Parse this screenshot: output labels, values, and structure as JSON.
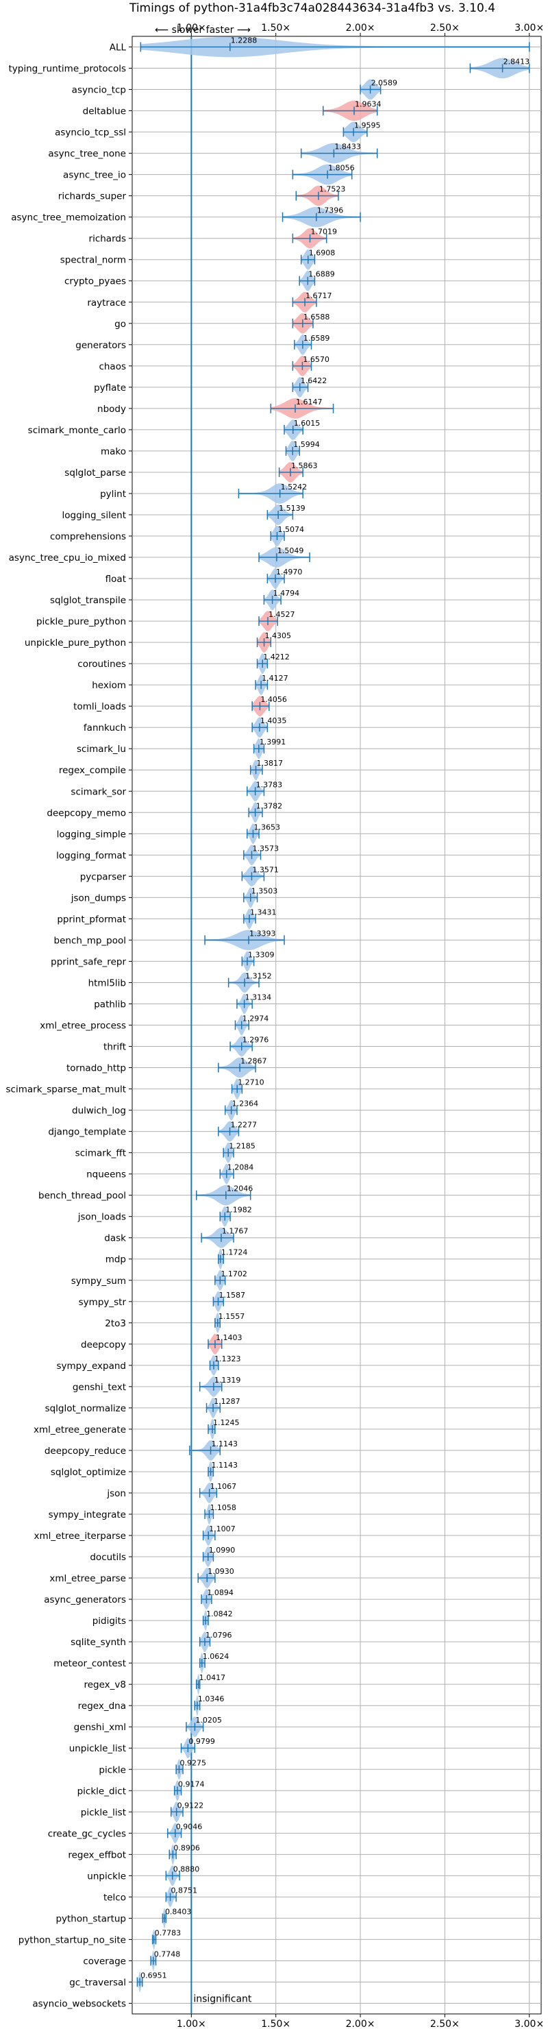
{
  "chart_data": {
    "type": "violin",
    "title": "Timings of python-31a4fb3c74a028443634-31a4fb3 vs. 3.10.4",
    "direction_note": "⟵ slower    faster ⟶",
    "xlim": [
      0.65,
      3.07
    ],
    "x_ticks": [
      1.0,
      1.5,
      2.0,
      2.5,
      3.0
    ],
    "x_tick_labels": [
      "1.00×",
      "1.50×",
      "2.00×",
      "2.50×",
      "3.00×"
    ],
    "grid": true,
    "reference_line": 1.0,
    "colors": {
      "faster": "#a4c8ea",
      "slower": "#f4a9a9",
      "line": "#1f77b4"
    },
    "insignificant_label": "insignificant",
    "benchmarks": [
      {
        "name": "ALL",
        "value": 1.2288,
        "label": "1.2288",
        "low": 0.7,
        "high": 3.0,
        "spread": 0.6,
        "slower": false
      },
      {
        "name": "typing_runtime_protocols",
        "value": 2.8413,
        "label": "2.8413",
        "low": 2.65,
        "high": 3.0,
        "spread": 0.14,
        "slower": false
      },
      {
        "name": "asyncio_tcp",
        "value": 2.0589,
        "label": "2.0589",
        "low": 2.0,
        "high": 2.12,
        "spread": 0.06,
        "slower": false
      },
      {
        "name": "deltablue",
        "value": 1.9634,
        "label": "1.9634",
        "low": 1.78,
        "high": 2.1,
        "spread": 0.12,
        "slower": true
      },
      {
        "name": "asyncio_tcp_ssl",
        "value": 1.9595,
        "label": "1.9595",
        "low": 1.9,
        "high": 2.04,
        "spread": 0.07,
        "slower": false
      },
      {
        "name": "async_tree_none",
        "value": 1.8433,
        "label": "1.8433",
        "low": 1.65,
        "high": 2.1,
        "spread": 0.14,
        "slower": false
      },
      {
        "name": "async_tree_io",
        "value": 1.8056,
        "label": "1.8056",
        "low": 1.6,
        "high": 1.95,
        "spread": 0.12,
        "slower": false
      },
      {
        "name": "richards_super",
        "value": 1.7523,
        "label": "1.7523",
        "low": 1.62,
        "high": 1.87,
        "spread": 0.08,
        "slower": true
      },
      {
        "name": "async_tree_memoization",
        "value": 1.7396,
        "label": "1.7396",
        "low": 1.54,
        "high": 2.0,
        "spread": 0.14,
        "slower": false
      },
      {
        "name": "richards",
        "value": 1.7019,
        "label": "1.7019",
        "low": 1.6,
        "high": 1.8,
        "spread": 0.07,
        "slower": true
      },
      {
        "name": "spectral_norm",
        "value": 1.6908,
        "label": "1.6908",
        "low": 1.65,
        "high": 1.73,
        "spread": 0.04,
        "slower": false
      },
      {
        "name": "crypto_pyaes",
        "value": 1.6889,
        "label": "1.6889",
        "low": 1.64,
        "high": 1.73,
        "spread": 0.04,
        "slower": false
      },
      {
        "name": "raytrace",
        "value": 1.6717,
        "label": "1.6717",
        "low": 1.6,
        "high": 1.74,
        "spread": 0.06,
        "slower": true
      },
      {
        "name": "go",
        "value": 1.6588,
        "label": "1.6588",
        "low": 1.6,
        "high": 1.72,
        "spread": 0.06,
        "slower": true
      },
      {
        "name": "generators",
        "value": 1.6589,
        "label": "1.6589",
        "low": 1.61,
        "high": 1.71,
        "spread": 0.04,
        "slower": false
      },
      {
        "name": "chaos",
        "value": 1.657,
        "label": "1.6570",
        "low": 1.6,
        "high": 1.71,
        "spread": 0.05,
        "slower": true
      },
      {
        "name": "pyflate",
        "value": 1.6422,
        "label": "1.6422",
        "low": 1.6,
        "high": 1.69,
        "spread": 0.04,
        "slower": false
      },
      {
        "name": "nbody",
        "value": 1.6147,
        "label": "1.6147",
        "low": 1.47,
        "high": 1.84,
        "spread": 0.12,
        "slower": true
      },
      {
        "name": "scimark_monte_carlo",
        "value": 1.6015,
        "label": "1.6015",
        "low": 1.55,
        "high": 1.66,
        "spread": 0.05,
        "slower": false
      },
      {
        "name": "mako",
        "value": 1.5994,
        "label": "1.5994",
        "low": 1.56,
        "high": 1.64,
        "spread": 0.04,
        "slower": false
      },
      {
        "name": "sqlglot_parse",
        "value": 1.5863,
        "label": "1.5863",
        "low": 1.52,
        "high": 1.66,
        "spread": 0.06,
        "slower": true
      },
      {
        "name": "pylint",
        "value": 1.5242,
        "label": "1.5242",
        "low": 1.28,
        "high": 1.66,
        "spread": 0.1,
        "slower": false
      },
      {
        "name": "logging_silent",
        "value": 1.5139,
        "label": "1.5139",
        "low": 1.45,
        "high": 1.6,
        "spread": 0.06,
        "slower": false
      },
      {
        "name": "comprehensions",
        "value": 1.5074,
        "label": "1.5074",
        "low": 1.47,
        "high": 1.55,
        "spread": 0.04,
        "slower": false
      },
      {
        "name": "async_tree_cpu_io_mixed",
        "value": 1.5049,
        "label": "1.5049",
        "low": 1.4,
        "high": 1.7,
        "spread": 0.1,
        "slower": false
      },
      {
        "name": "float",
        "value": 1.497,
        "label": "1.4970",
        "low": 1.45,
        "high": 1.55,
        "spread": 0.04,
        "slower": false
      },
      {
        "name": "sqlglot_transpile",
        "value": 1.4794,
        "label": "1.4794",
        "low": 1.43,
        "high": 1.53,
        "spread": 0.04,
        "slower": false
      },
      {
        "name": "pickle_pure_python",
        "value": 1.4527,
        "label": "1.4527",
        "low": 1.4,
        "high": 1.51,
        "spread": 0.05,
        "slower": true
      },
      {
        "name": "unpickle_pure_python",
        "value": 1.4305,
        "label": "1.4305",
        "low": 1.39,
        "high": 1.47,
        "spread": 0.04,
        "slower": true
      },
      {
        "name": "coroutines",
        "value": 1.4212,
        "label": "1.4212",
        "low": 1.39,
        "high": 1.45,
        "spread": 0.03,
        "slower": false
      },
      {
        "name": "hexiom",
        "value": 1.4127,
        "label": "1.4127",
        "low": 1.38,
        "high": 1.45,
        "spread": 0.03,
        "slower": false
      },
      {
        "name": "tomli_loads",
        "value": 1.4056,
        "label": "1.4056",
        "low": 1.36,
        "high": 1.46,
        "spread": 0.05,
        "slower": true
      },
      {
        "name": "fannkuch",
        "value": 1.4035,
        "label": "1.4035",
        "low": 1.36,
        "high": 1.45,
        "spread": 0.04,
        "slower": false
      },
      {
        "name": "scimark_lu",
        "value": 1.3991,
        "label": "1.3991",
        "low": 1.37,
        "high": 1.43,
        "spread": 0.03,
        "slower": false
      },
      {
        "name": "regex_compile",
        "value": 1.3817,
        "label": "1.3817",
        "low": 1.35,
        "high": 1.42,
        "spread": 0.03,
        "slower": false
      },
      {
        "name": "scimark_sor",
        "value": 1.3783,
        "label": "1.3783",
        "low": 1.33,
        "high": 1.43,
        "spread": 0.04,
        "slower": false
      },
      {
        "name": "deepcopy_memo",
        "value": 1.3782,
        "label": "1.3782",
        "low": 1.34,
        "high": 1.42,
        "spread": 0.03,
        "slower": false
      },
      {
        "name": "logging_simple",
        "value": 1.3653,
        "label": "1.3653",
        "low": 1.33,
        "high": 1.4,
        "spread": 0.03,
        "slower": false
      },
      {
        "name": "logging_format",
        "value": 1.3573,
        "label": "1.3573",
        "low": 1.31,
        "high": 1.41,
        "spread": 0.04,
        "slower": false
      },
      {
        "name": "pycparser",
        "value": 1.3571,
        "label": "1.3571",
        "low": 1.3,
        "high": 1.43,
        "spread": 0.05,
        "slower": false
      },
      {
        "name": "json_dumps",
        "value": 1.3503,
        "label": "1.3503",
        "low": 1.31,
        "high": 1.39,
        "spread": 0.03,
        "slower": false
      },
      {
        "name": "pprint_pformat",
        "value": 1.3431,
        "label": "1.3431",
        "low": 1.31,
        "high": 1.38,
        "spread": 0.03,
        "slower": false
      },
      {
        "name": "bench_mp_pool",
        "value": 1.3393,
        "label": "1.3393",
        "low": 1.08,
        "high": 1.55,
        "spread": 0.14,
        "slower": false
      },
      {
        "name": "pprint_safe_repr",
        "value": 1.3309,
        "label": "1.3309",
        "low": 1.3,
        "high": 1.37,
        "spread": 0.03,
        "slower": false
      },
      {
        "name": "html5lib",
        "value": 1.3152,
        "label": "1.3152",
        "low": 1.22,
        "high": 1.4,
        "spread": 0.05,
        "slower": false
      },
      {
        "name": "pathlib",
        "value": 1.3134,
        "label": "1.3134",
        "low": 1.27,
        "high": 1.36,
        "spread": 0.03,
        "slower": false
      },
      {
        "name": "xml_etree_process",
        "value": 1.2974,
        "label": "1.2974",
        "low": 1.26,
        "high": 1.34,
        "spread": 0.03,
        "slower": false
      },
      {
        "name": "thrift",
        "value": 1.2976,
        "label": "1.2976",
        "low": 1.23,
        "high": 1.36,
        "spread": 0.05,
        "slower": false
      },
      {
        "name": "tornado_http",
        "value": 1.2867,
        "label": "1.2867",
        "low": 1.16,
        "high": 1.38,
        "spread": 0.08,
        "slower": false
      },
      {
        "name": "scimark_sparse_mat_mult",
        "value": 1.271,
        "label": "1.2710",
        "low": 1.24,
        "high": 1.3,
        "spread": 0.03,
        "slower": false
      },
      {
        "name": "dulwich_log",
        "value": 1.2364,
        "label": "1.2364",
        "low": 1.2,
        "high": 1.27,
        "spread": 0.03,
        "slower": false
      },
      {
        "name": "django_template",
        "value": 1.2277,
        "label": "1.2277",
        "low": 1.16,
        "high": 1.28,
        "spread": 0.05,
        "slower": false
      },
      {
        "name": "scimark_fft",
        "value": 1.2185,
        "label": "1.2185",
        "low": 1.19,
        "high": 1.25,
        "spread": 0.03,
        "slower": false
      },
      {
        "name": "nqueens",
        "value": 1.2084,
        "label": "1.2084",
        "low": 1.17,
        "high": 1.25,
        "spread": 0.03,
        "slower": false
      },
      {
        "name": "bench_thread_pool",
        "value": 1.2046,
        "label": "1.2046",
        "low": 1.03,
        "high": 1.35,
        "spread": 0.1,
        "slower": false
      },
      {
        "name": "json_loads",
        "value": 1.1982,
        "label": "1.1982",
        "low": 1.17,
        "high": 1.23,
        "spread": 0.03,
        "slower": false
      },
      {
        "name": "dask",
        "value": 1.1767,
        "label": "1.1767",
        "low": 1.06,
        "high": 1.25,
        "spread": 0.07,
        "slower": false
      },
      {
        "name": "mdp",
        "value": 1.1724,
        "label": "1.1724",
        "low": 1.16,
        "high": 1.19,
        "spread": 0.02,
        "slower": false
      },
      {
        "name": "sympy_sum",
        "value": 1.1702,
        "label": "1.1702",
        "low": 1.14,
        "high": 1.2,
        "spread": 0.03,
        "slower": false
      },
      {
        "name": "sympy_str",
        "value": 1.1587,
        "label": "1.1587",
        "low": 1.13,
        "high": 1.19,
        "spread": 0.03,
        "slower": false
      },
      {
        "name": "2to3",
        "value": 1.1557,
        "label": "1.1557",
        "low": 1.14,
        "high": 1.17,
        "spread": 0.02,
        "slower": false
      },
      {
        "name": "deepcopy",
        "value": 1.1403,
        "label": "1.1403",
        "low": 1.1,
        "high": 1.18,
        "spread": 0.04,
        "slower": true
      },
      {
        "name": "sympy_expand",
        "value": 1.1323,
        "label": "1.1323",
        "low": 1.11,
        "high": 1.16,
        "spread": 0.03,
        "slower": false
      },
      {
        "name": "genshi_text",
        "value": 1.1319,
        "label": "1.1319",
        "low": 1.05,
        "high": 1.18,
        "spread": 0.05,
        "slower": false
      },
      {
        "name": "sqlglot_normalize",
        "value": 1.1287,
        "label": "1.1287",
        "low": 1.09,
        "high": 1.17,
        "spread": 0.03,
        "slower": false
      },
      {
        "name": "xml_etree_generate",
        "value": 1.1245,
        "label": "1.1245",
        "low": 1.1,
        "high": 1.14,
        "spread": 0.02,
        "slower": false
      },
      {
        "name": "deepcopy_reduce",
        "value": 1.1143,
        "label": "1.1143",
        "low": 0.99,
        "high": 1.17,
        "spread": 0.05,
        "slower": false
      },
      {
        "name": "sqlglot_optimize",
        "value": 1.1143,
        "label": "1.1143",
        "low": 1.1,
        "high": 1.13,
        "spread": 0.02,
        "slower": false
      },
      {
        "name": "json",
        "value": 1.1067,
        "label": "1.1067",
        "low": 1.05,
        "high": 1.15,
        "spread": 0.04,
        "slower": false
      },
      {
        "name": "sympy_integrate",
        "value": 1.1058,
        "label": "1.1058",
        "low": 1.08,
        "high": 1.13,
        "spread": 0.02,
        "slower": false
      },
      {
        "name": "xml_etree_iterparse",
        "value": 1.1007,
        "label": "1.1007",
        "low": 1.07,
        "high": 1.14,
        "spread": 0.03,
        "slower": false
      },
      {
        "name": "docutils",
        "value": 1.099,
        "label": "1.0990",
        "low": 1.07,
        "high": 1.13,
        "spread": 0.03,
        "slower": false
      },
      {
        "name": "xml_etree_parse",
        "value": 1.093,
        "label": "1.0930",
        "low": 1.04,
        "high": 1.14,
        "spread": 0.04,
        "slower": false
      },
      {
        "name": "async_generators",
        "value": 1.0894,
        "label": "1.0894",
        "low": 1.06,
        "high": 1.12,
        "spread": 0.03,
        "slower": false
      },
      {
        "name": "pidigits",
        "value": 1.0842,
        "label": "1.0842",
        "low": 1.07,
        "high": 1.1,
        "spread": 0.015,
        "slower": false
      },
      {
        "name": "sqlite_synth",
        "value": 1.0796,
        "label": "1.0796",
        "low": 1.05,
        "high": 1.11,
        "spread": 0.03,
        "slower": false
      },
      {
        "name": "meteor_contest",
        "value": 1.0624,
        "label": "1.0624",
        "low": 1.05,
        "high": 1.08,
        "spread": 0.015,
        "slower": false
      },
      {
        "name": "regex_v8",
        "value": 1.0417,
        "label": "1.0417",
        "low": 1.03,
        "high": 1.05,
        "spread": 0.012,
        "slower": false
      },
      {
        "name": "regex_dna",
        "value": 1.0346,
        "label": "1.0346",
        "low": 1.02,
        "high": 1.05,
        "spread": 0.012,
        "slower": false
      },
      {
        "name": "genshi_xml",
        "value": 1.0205,
        "label": "1.0205",
        "low": 0.97,
        "high": 1.07,
        "spread": 0.04,
        "slower": false
      },
      {
        "name": "unpickle_list",
        "value": 0.9799,
        "label": "0.9799",
        "low": 0.94,
        "high": 1.02,
        "spread": 0.03,
        "slower": false
      },
      {
        "name": "pickle",
        "value": 0.9275,
        "label": "0.9275",
        "low": 0.91,
        "high": 0.95,
        "spread": 0.02,
        "slower": false
      },
      {
        "name": "pickle_dict",
        "value": 0.9174,
        "label": "0.9174",
        "low": 0.9,
        "high": 0.94,
        "spread": 0.02,
        "slower": false
      },
      {
        "name": "pickle_list",
        "value": 0.9122,
        "label": "0.9122",
        "low": 0.88,
        "high": 0.95,
        "spread": 0.03,
        "slower": false
      },
      {
        "name": "create_gc_cycles",
        "value": 0.9046,
        "label": "0.9046",
        "low": 0.86,
        "high": 0.94,
        "spread": 0.03,
        "slower": false
      },
      {
        "name": "regex_effbot",
        "value": 0.8906,
        "label": "0.8906",
        "low": 0.87,
        "high": 0.91,
        "spread": 0.015,
        "slower": false
      },
      {
        "name": "unpickle",
        "value": 0.888,
        "label": "0.8880",
        "low": 0.85,
        "high": 0.93,
        "spread": 0.03,
        "slower": false
      },
      {
        "name": "telco",
        "value": 0.8751,
        "label": "0.8751",
        "low": 0.85,
        "high": 0.91,
        "spread": 0.025,
        "slower": false
      },
      {
        "name": "python_startup",
        "value": 0.8403,
        "label": "0.8403",
        "low": 0.83,
        "high": 0.85,
        "spread": 0.012,
        "slower": false
      },
      {
        "name": "python_startup_no_site",
        "value": 0.7783,
        "label": "0.7783",
        "low": 0.77,
        "high": 0.79,
        "spread": 0.012,
        "slower": false
      },
      {
        "name": "coverage",
        "value": 0.7748,
        "label": "0.7748",
        "low": 0.76,
        "high": 0.79,
        "spread": 0.012,
        "slower": false
      },
      {
        "name": "gc_traversal",
        "value": 0.6951,
        "label": "0.6951",
        "low": 0.68,
        "high": 0.71,
        "spread": 0.012,
        "slower": false
      },
      {
        "name": "asyncio_websockets",
        "value": null,
        "label": "insignificant",
        "insignificant": true
      }
    ]
  }
}
